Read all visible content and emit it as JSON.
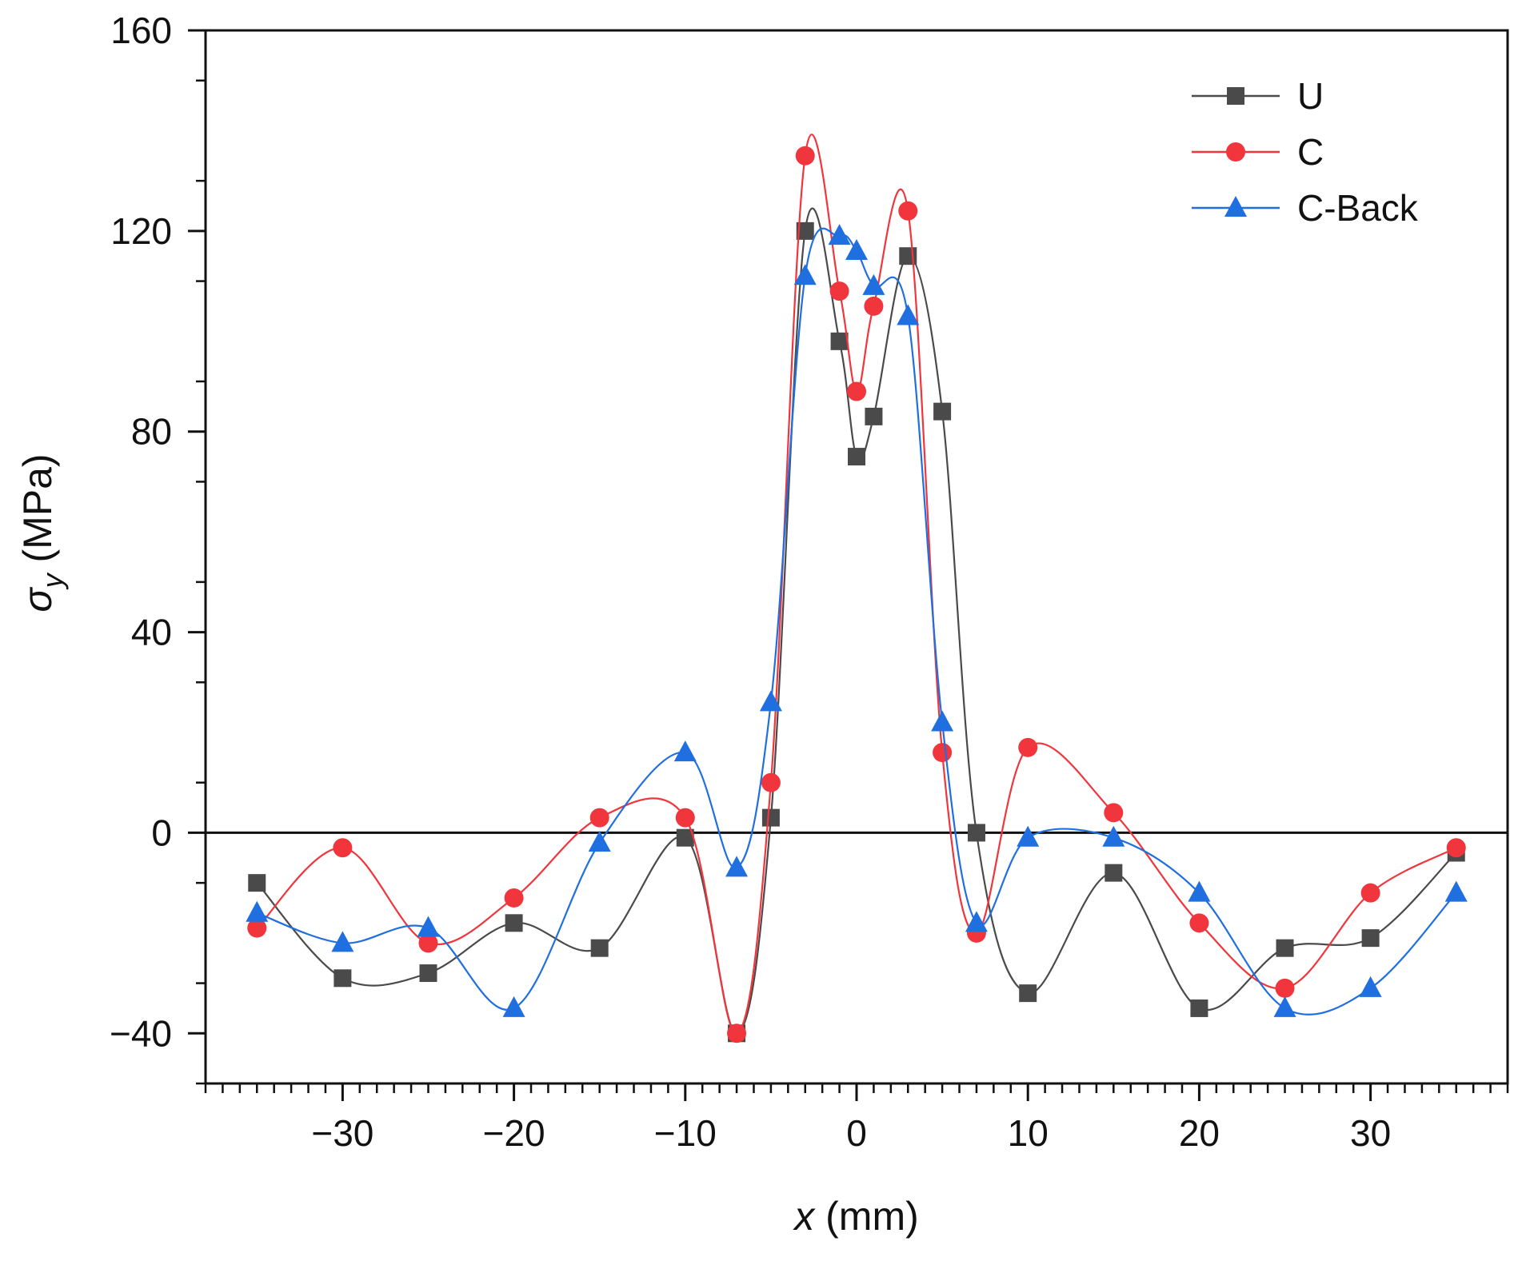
{
  "chart_data": {
    "type": "line",
    "xlabel": "x (mm)",
    "ylabel": "σy (MPa)",
    "xlim": [
      -38,
      38
    ],
    "ylim": [
      -50,
      160
    ],
    "xticks": [
      -30,
      -20,
      -10,
      0,
      10,
      20,
      30
    ],
    "xtick_labels": [
      "−30",
      "−20",
      "−10",
      "0",
      "10",
      "20",
      "30"
    ],
    "yticks": [
      -40,
      0,
      40,
      80,
      120,
      160
    ],
    "ytick_labels": [
      "−40",
      "0",
      "40",
      "80",
      "120",
      "160"
    ],
    "x_minor_step": 1,
    "y_minor_step": 20,
    "zero_line": true,
    "grid": false,
    "legend_position": "top-right",
    "series": [
      {
        "name": "U",
        "color": "#4a4a4a",
        "marker": "square",
        "x": [
          -35,
          -30,
          -25,
          -20,
          -15,
          -10,
          -7,
          -5,
          -3,
          -1,
          0,
          1,
          3,
          5,
          7,
          10,
          15,
          20,
          25,
          30,
          35
        ],
        "y": [
          -10,
          -29,
          -28,
          -18,
          -23,
          -1,
          -40,
          3,
          120,
          98,
          75,
          83,
          115,
          84,
          0,
          -32,
          -8,
          -35,
          -23,
          -21,
          -4
        ]
      },
      {
        "name": "C",
        "color": "#f0353c",
        "marker": "circle",
        "x": [
          -35,
          -30,
          -25,
          -20,
          -15,
          -10,
          -7,
          -5,
          -3,
          -1,
          0,
          1,
          3,
          5,
          7,
          10,
          15,
          20,
          25,
          30,
          35
        ],
        "y": [
          -19,
          -3,
          -22,
          -13,
          3,
          3,
          -40,
          10,
          135,
          108,
          88,
          105,
          124,
          16,
          -20,
          17,
          4,
          -18,
          -31,
          -12,
          -3
        ]
      },
      {
        "name": "C-Back",
        "color": "#1f6fe0",
        "marker": "triangle",
        "x": [
          -35,
          -30,
          -25,
          -20,
          -15,
          -10,
          -7,
          -5,
          -3,
          -1,
          0,
          1,
          3,
          5,
          7,
          10,
          15,
          20,
          25,
          30,
          35
        ],
        "y": [
          -16,
          -22,
          -19,
          -35,
          -2,
          16,
          -7,
          26,
          111,
          119,
          116,
          109,
          103,
          22,
          -18,
          -1,
          -1,
          -12,
          -35,
          -31,
          -12
        ]
      }
    ]
  }
}
